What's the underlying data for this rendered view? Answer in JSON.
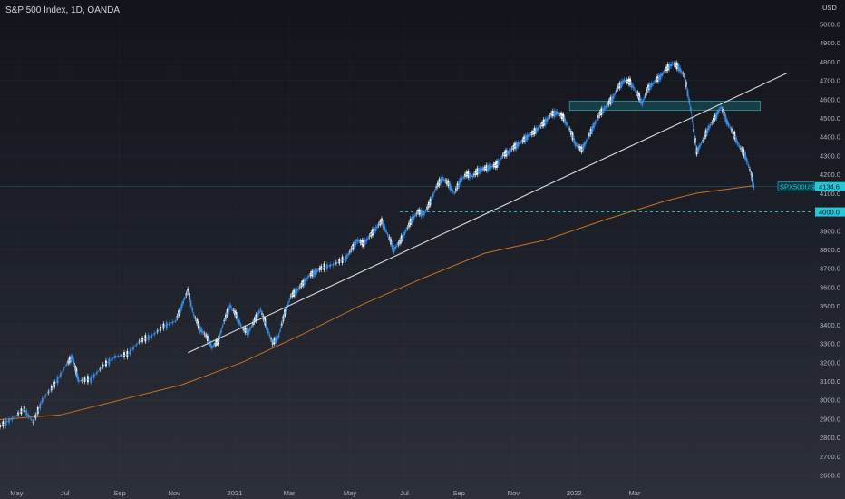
{
  "title": "S&P 500 Index, 1D, OANDA",
  "currency": "USD",
  "price_tag": {
    "symbol": "SPX500USD",
    "value": "4134.6"
  },
  "level_tag": "4000.0",
  "colors": {
    "price_line": "#3a8ee6",
    "candle": "#ffffff",
    "ma": "#c9711c",
    "trendline": "#d9d9d9",
    "resistance_zone": "#1b6b72",
    "support_line": "#2ed1d8",
    "tag_bg": "#26c6da"
  },
  "chart_data": {
    "type": "line",
    "series": [
      {
        "values": [
          [
            0.0,
            2860
          ],
          [
            0.02,
            2900
          ],
          [
            0.04,
            2950
          ],
          [
            0.055,
            2880
          ],
          [
            0.07,
            3000
          ],
          [
            0.09,
            3080
          ],
          [
            0.11,
            3190
          ],
          [
            0.12,
            3230
          ],
          [
            0.125,
            3160
          ],
          [
            0.13,
            3100
          ],
          [
            0.15,
            3110
          ],
          [
            0.17,
            3180
          ],
          [
            0.19,
            3230
          ],
          [
            0.21,
            3240
          ],
          [
            0.23,
            3310
          ],
          [
            0.25,
            3340
          ],
          [
            0.27,
            3390
          ],
          [
            0.29,
            3420
          ],
          [
            0.3,
            3500
          ],
          [
            0.31,
            3580
          ],
          [
            0.32,
            3450
          ],
          [
            0.33,
            3380
          ],
          [
            0.34,
            3340
          ],
          [
            0.35,
            3280
          ],
          [
            0.36,
            3310
          ],
          [
            0.37,
            3420
          ],
          [
            0.38,
            3500
          ],
          [
            0.39,
            3450
          ],
          [
            0.4,
            3380
          ],
          [
            0.41,
            3360
          ],
          [
            0.42,
            3420
          ],
          [
            0.43,
            3480
          ],
          [
            0.44,
            3390
          ],
          [
            0.45,
            3300
          ],
          [
            0.46,
            3340
          ],
          [
            0.47,
            3460
          ],
          [
            0.48,
            3550
          ],
          [
            0.49,
            3580
          ],
          [
            0.5,
            3620
          ],
          [
            0.51,
            3660
          ],
          [
            0.52,
            3680
          ],
          [
            0.53,
            3700
          ],
          [
            0.55,
            3720
          ],
          [
            0.57,
            3750
          ],
          [
            0.58,
            3800
          ],
          [
            0.59,
            3850
          ],
          [
            0.6,
            3830
          ],
          [
            0.61,
            3870
          ],
          [
            0.62,
            3910
          ],
          [
            0.63,
            3950
          ],
          [
            0.64,
            3880
          ],
          [
            0.65,
            3800
          ],
          [
            0.66,
            3840
          ],
          [
            0.67,
            3900
          ],
          [
            0.68,
            3960
          ],
          [
            0.69,
            4000
          ],
          [
            0.7,
            3990
          ],
          [
            0.71,
            4050
          ],
          [
            0.72,
            4130
          ],
          [
            0.73,
            4180
          ],
          [
            0.74,
            4150
          ],
          [
            0.75,
            4100
          ],
          [
            0.76,
            4170
          ],
          [
            0.77,
            4200
          ],
          [
            0.78,
            4190
          ],
          [
            0.79,
            4220
          ],
          [
            0.8,
            4230
          ],
          [
            0.81,
            4240
          ],
          [
            0.82,
            4250
          ],
          [
            0.83,
            4300
          ],
          [
            0.84,
            4320
          ],
          [
            0.85,
            4350
          ],
          [
            0.86,
            4370
          ],
          [
            0.87,
            4400
          ],
          [
            0.88,
            4420
          ],
          [
            0.89,
            4450
          ],
          [
            0.9,
            4480
          ],
          [
            0.91,
            4520
          ],
          [
            0.92,
            4530
          ],
          [
            0.93,
            4500
          ],
          [
            0.94,
            4440
          ],
          [
            0.95,
            4360
          ],
          [
            0.96,
            4330
          ],
          [
            0.97,
            4390
          ],
          [
            0.98,
            4460
          ],
          [
            0.99,
            4520
          ],
          [
            1.0,
            4560
          ],
          [
            1.01,
            4600
          ],
          [
            1.02,
            4660
          ],
          [
            1.03,
            4700
          ],
          [
            1.04,
            4690
          ],
          [
            1.05,
            4640
          ],
          [
            1.06,
            4580
          ],
          [
            1.07,
            4660
          ],
          [
            1.08,
            4690
          ],
          [
            1.09,
            4720
          ],
          [
            1.1,
            4760
          ],
          [
            1.11,
            4790
          ],
          [
            1.12,
            4770
          ],
          [
            1.13,
            4720
          ],
          [
            1.14,
            4550
          ],
          [
            1.15,
            4320
          ],
          [
            1.16,
            4380
          ],
          [
            1.17,
            4450
          ],
          [
            1.18,
            4500
          ],
          [
            1.19,
            4560
          ],
          [
            1.2,
            4480
          ],
          [
            1.21,
            4420
          ],
          [
            1.22,
            4350
          ],
          [
            1.23,
            4300
          ],
          [
            1.24,
            4200
          ],
          [
            1.245,
            4120
          ]
        ]
      }
    ],
    "y_ticks": [
      "2600.0",
      "2700.0",
      "2800.0",
      "2900.0",
      "3000.0",
      "3100.0",
      "3200.0",
      "3300.0",
      "3400.0",
      "3500.0",
      "3600.0",
      "3700.0",
      "3800.0",
      "3900.0",
      "4000.0",
      "4100.0",
      "4200.0",
      "4300.0",
      "4400.0",
      "4500.0",
      "4600.0",
      "4700.0",
      "4800.0",
      "4900.0",
      "5000.0"
    ],
    "x_ticks": [
      "May",
      "Jul",
      "Sep",
      "Nov",
      "2021",
      "Mar",
      "May",
      "Jul",
      "Sep",
      "Nov",
      "2022",
      "Mar"
    ],
    "ylim": [
      2540,
      5060
    ],
    "moving_average": [
      [
        0.0,
        2895
      ],
      [
        0.1,
        2920
      ],
      [
        0.2,
        3000
      ],
      [
        0.3,
        3080
      ],
      [
        0.4,
        3200
      ],
      [
        0.5,
        3350
      ],
      [
        0.6,
        3510
      ],
      [
        0.7,
        3650
      ],
      [
        0.8,
        3780
      ],
      [
        0.9,
        3850
      ],
      [
        1.0,
        3960
      ],
      [
        1.1,
        4060
      ],
      [
        1.15,
        4100
      ],
      [
        1.245,
        4140
      ]
    ],
    "trendline": [
      [
        0.31,
        3250
      ],
      [
        1.3,
        4740
      ]
    ],
    "resistance_zone": {
      "from": [
        0.94,
        1.255
      ],
      "low": 4540,
      "high": 4590
    },
    "support_level": 4000,
    "current_price": 4134.6
  }
}
